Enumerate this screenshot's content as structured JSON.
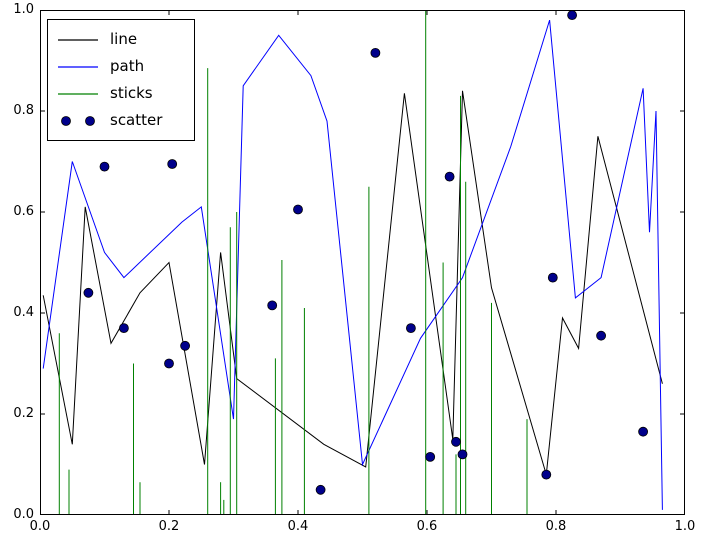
{
  "chart_data": {
    "type": "line",
    "title": "",
    "xlabel": "",
    "ylabel": "",
    "xlim": [
      0.0,
      1.0
    ],
    "ylim": [
      0.0,
      1.0
    ],
    "grid": false,
    "x_ticks": [
      "0.0",
      "0.2",
      "0.4",
      "0.6",
      "0.8",
      "1.0"
    ],
    "y_ticks": [
      "0.0",
      "0.2",
      "0.4",
      "0.6",
      "0.8",
      "1.0"
    ],
    "legend": {
      "position": "upper-left",
      "entries": [
        {
          "label": "line",
          "type": "line",
          "color": "#000000"
        },
        {
          "label": "path",
          "type": "line",
          "color": "#0000ff"
        },
        {
          "label": "sticks",
          "type": "line",
          "color": "#008000"
        },
        {
          "label": "scatter",
          "type": "marker",
          "color": "#00008b"
        }
      ]
    },
    "series": [
      {
        "name": "line",
        "type": "line",
        "color": "#000000",
        "x": [
          0.005,
          0.05,
          0.07,
          0.11,
          0.155,
          0.2,
          0.255,
          0.28,
          0.305,
          0.44,
          0.505,
          0.565,
          0.64,
          0.655,
          0.7,
          0.785,
          0.81,
          0.835,
          0.865,
          0.965
        ],
        "y": [
          0.435,
          0.14,
          0.61,
          0.34,
          0.44,
          0.5,
          0.1,
          0.52,
          0.27,
          0.14,
          0.095,
          0.835,
          0.15,
          0.84,
          0.45,
          0.08,
          0.39,
          0.33,
          0.75,
          0.26
        ]
      },
      {
        "name": "path",
        "type": "line",
        "color": "#0000ff",
        "x": [
          0.005,
          0.05,
          0.1,
          0.13,
          0.22,
          0.25,
          0.3,
          0.315,
          0.37,
          0.42,
          0.445,
          0.5,
          0.59,
          0.655,
          0.73,
          0.79,
          0.83,
          0.87,
          0.935,
          0.945,
          0.955,
          0.965
        ],
        "y": [
          0.29,
          0.7,
          0.52,
          0.47,
          0.58,
          0.61,
          0.19,
          0.85,
          0.95,
          0.87,
          0.78,
          0.1,
          0.35,
          0.47,
          0.73,
          0.98,
          0.43,
          0.47,
          0.845,
          0.56,
          0.8,
          0.01
        ]
      },
      {
        "name": "sticks",
        "type": "sticks",
        "color": "#008000",
        "x": [
          0.03,
          0.045,
          0.145,
          0.155,
          0.26,
          0.28,
          0.285,
          0.295,
          0.305,
          0.365,
          0.375,
          0.41,
          0.51,
          0.598,
          0.625,
          0.645,
          0.652,
          0.66,
          0.7,
          0.755
        ],
        "y": [
          0.36,
          0.09,
          0.3,
          0.065,
          0.885,
          0.065,
          0.03,
          0.57,
          0.6,
          0.31,
          0.505,
          0.41,
          0.65,
          1.0,
          0.5,
          0.12,
          0.83,
          0.66,
          0.42,
          0.19
        ]
      },
      {
        "name": "scatter",
        "type": "scatter",
        "color": "#00008b",
        "x": [
          0.075,
          0.1,
          0.13,
          0.2,
          0.205,
          0.225,
          0.36,
          0.4,
          0.435,
          0.52,
          0.575,
          0.605,
          0.635,
          0.645,
          0.655,
          0.785,
          0.795,
          0.825,
          0.87,
          0.935
        ],
        "y": [
          0.44,
          0.69,
          0.37,
          0.3,
          0.695,
          0.335,
          0.415,
          0.605,
          0.05,
          0.915,
          0.37,
          0.115,
          0.67,
          0.145,
          0.12,
          0.08,
          0.47,
          0.99,
          0.355,
          0.165
        ]
      }
    ]
  }
}
